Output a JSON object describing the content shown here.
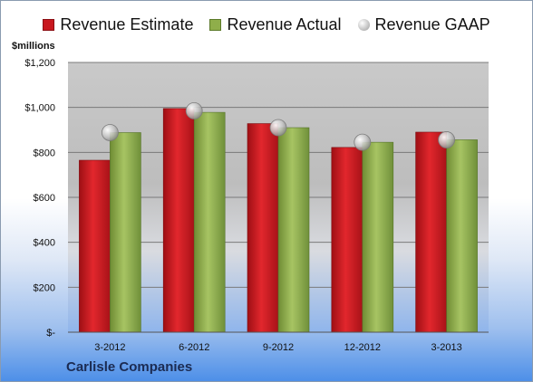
{
  "chart_data": {
    "type": "bar",
    "unit_label": "$millions",
    "categories": [
      "3-2012",
      "6-2012",
      "9-2012",
      "12-2012",
      "3-2013"
    ],
    "series": [
      {
        "name": "Revenue Estimate",
        "kind": "bar",
        "color": "#c8171e",
        "values": [
          765,
          995,
          928,
          822,
          890
        ]
      },
      {
        "name": "Revenue Actual",
        "kind": "bar",
        "color": "#8fae4a",
        "values": [
          888,
          978,
          910,
          845,
          856
        ]
      },
      {
        "name": "Revenue GAAP",
        "kind": "marker",
        "color": "#b9b9b9",
        "values": [
          888,
          985,
          910,
          845,
          856
        ]
      }
    ],
    "ylim": [
      0,
      1200
    ],
    "yticks": [
      {
        "value": 0,
        "label": "$-"
      },
      {
        "value": 200,
        "label": "$200"
      },
      {
        "value": 400,
        "label": "$400"
      },
      {
        "value": 600,
        "label": "$600"
      },
      {
        "value": 800,
        "label": "$800"
      },
      {
        "value": 1000,
        "label": "$1,000"
      },
      {
        "value": 1200,
        "label": "$1,200"
      }
    ],
    "grid": true,
    "legend_position": "top"
  },
  "footer": {
    "company": "Carlisle Companies"
  }
}
